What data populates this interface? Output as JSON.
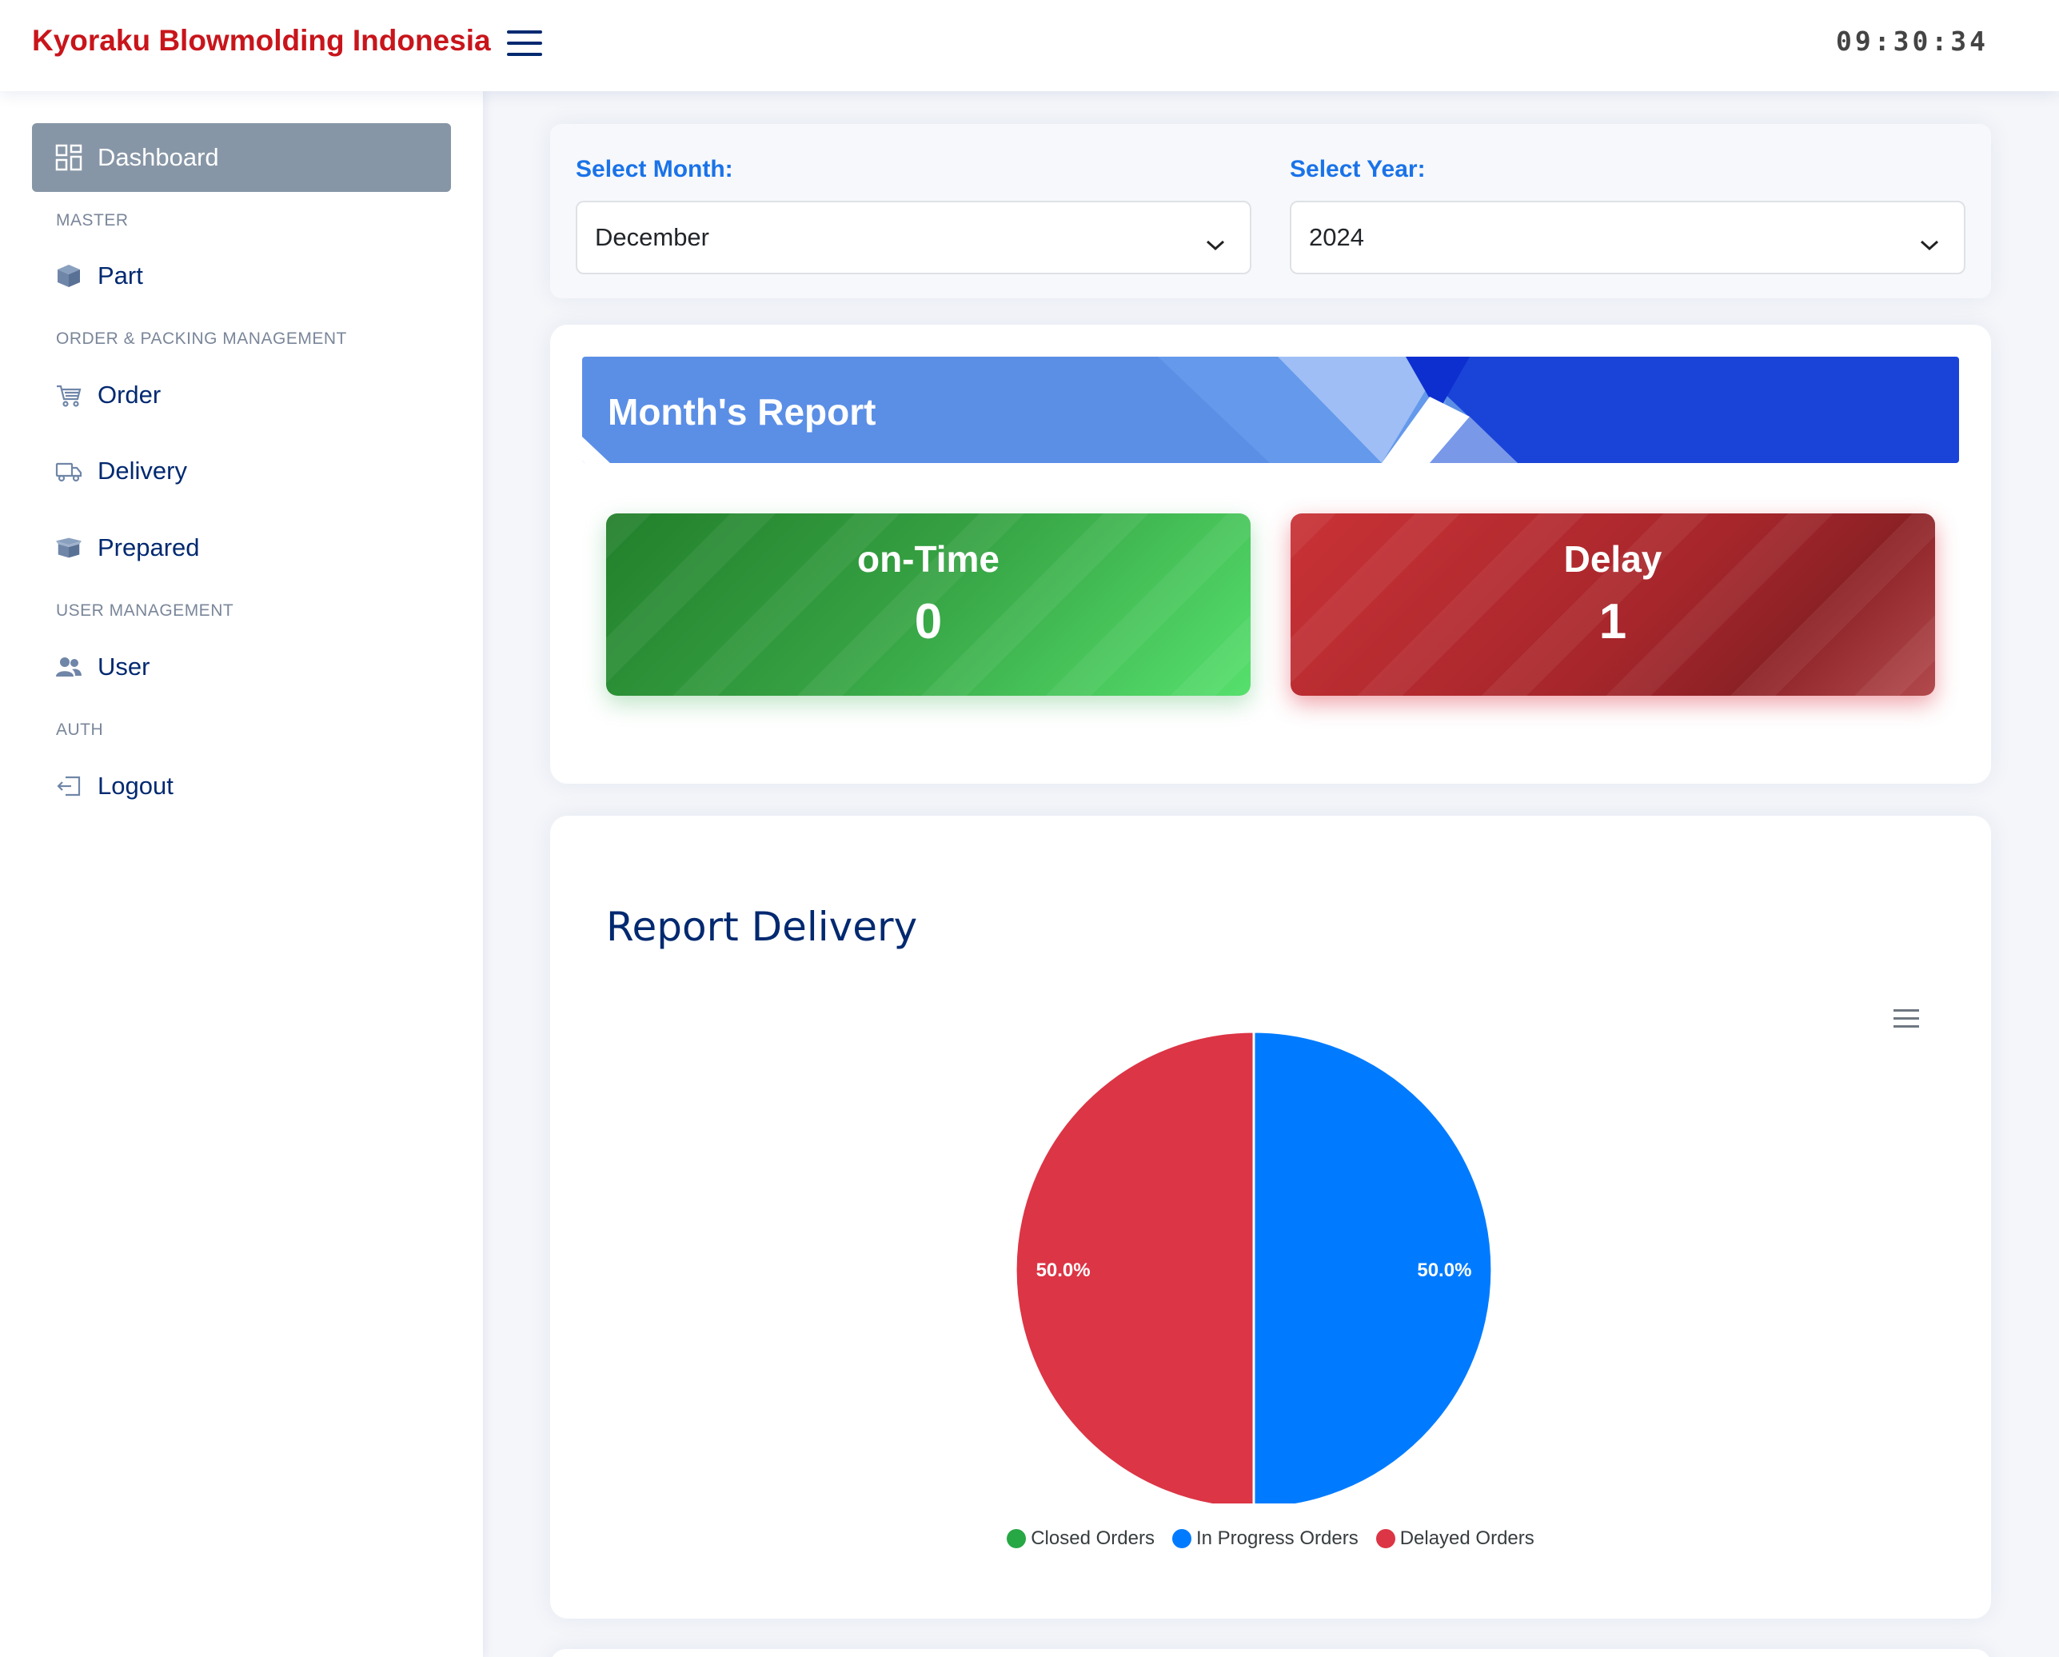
{
  "header": {
    "brand": "Kyoraku Blowmolding Indonesia",
    "clock": "09:30:34"
  },
  "sidebar": {
    "dashboard": "Dashboard",
    "headings": {
      "master": "MASTER",
      "order_packing": "ORDER & PACKING MANAGEMENT",
      "user_mgmt": "USER MANAGEMENT",
      "auth": "AUTH"
    },
    "items": {
      "part": "Part",
      "order": "Order",
      "delivery": "Delivery",
      "prepared": "Prepared",
      "user": "User",
      "logout": "Logout"
    }
  },
  "filters": {
    "month_label": "Select Month:",
    "month_value": "December",
    "year_label": "Select Year:",
    "year_value": "2024"
  },
  "report": {
    "title": "Month's Report",
    "on_time_label": "on-Time",
    "on_time_value": "0",
    "delay_label": "Delay",
    "delay_value": "1"
  },
  "chart_data": {
    "type": "pie",
    "title": "Report Delivery",
    "categories": [
      "Closed Orders",
      "In Progress Orders",
      "Delayed Orders"
    ],
    "values": [
      0,
      50.0,
      50.0
    ],
    "data_labels": [
      "",
      "50.0%",
      "50.0%"
    ],
    "colors": [
      "#28a745",
      "#007bff",
      "#dc3545"
    ],
    "legend": "bottom"
  }
}
